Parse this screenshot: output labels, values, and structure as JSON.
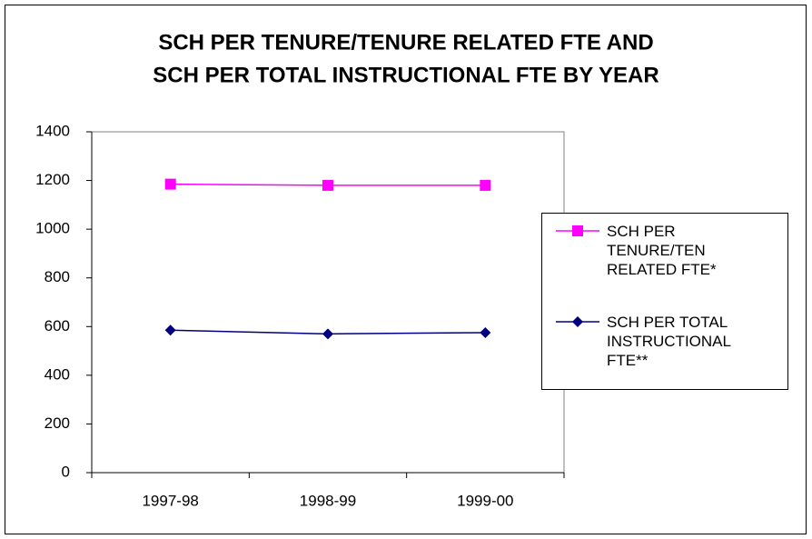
{
  "chart_data": {
    "type": "line",
    "title": [
      "SCH PER TENURE/TENURE RELATED FTE AND",
      "SCH PER TOTAL INSTRUCTIONAL FTE BY YEAR"
    ],
    "categories": [
      "1997-98",
      "1998-99",
      "1999-00"
    ],
    "series": [
      {
        "name": "SCH PER TENURE/TEN RELATED FTE*",
        "color": "#ff00ff",
        "marker": "square",
        "values": [
          1185,
          1180,
          1180
        ]
      },
      {
        "name": "SCH PER TOTAL INSTRUCTIONAL FTE**",
        "color": "#000080",
        "marker": "diamond",
        "values": [
          585,
          570,
          575
        ]
      }
    ],
    "ylim": [
      0,
      1400
    ],
    "yticks": [
      0,
      200,
      400,
      600,
      800,
      1000,
      1200,
      1400
    ],
    "grid": false,
    "legend": "right"
  }
}
